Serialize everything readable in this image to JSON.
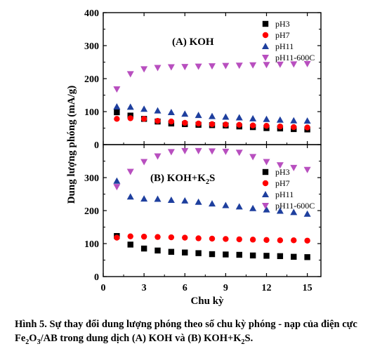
{
  "figure": {
    "x_label": "Chu kỳ",
    "y_label": "Dung lượng phóng (mA/g)",
    "x_ticks": [
      "0",
      "3",
      "6",
      "9",
      "12",
      "15"
    ],
    "caption": {
      "line1": "Hình 5. Sự thay đổi dung lượng phóng theo số chu kỳ phóng - nạp của điện cực",
      "line2_a": "Fe",
      "line2_sub1": "2",
      "line2_b": "O",
      "line2_sub2": "3",
      "line2_c": "/AB trong dung dịch (A) KOH và (B) KOH+K",
      "line2_sub3": "2",
      "line2_d": "S."
    }
  },
  "chart_data": [
    {
      "type": "scatter",
      "title": "(A) KOH",
      "xlim": [
        0,
        16
      ],
      "ylim": [
        0,
        400
      ],
      "y_ticks": [
        "0",
        "100",
        "200",
        "300",
        "400"
      ],
      "legend_placement": "top-right",
      "series": [
        {
          "name": "pH3",
          "marker": "square",
          "color": "#000000",
          "x": [
            1,
            2,
            3,
            4,
            5,
            6,
            7,
            8,
            9,
            10,
            11,
            12,
            13,
            14,
            15
          ],
          "y": [
            98,
            88,
            78,
            70,
            64,
            62,
            60,
            59,
            58,
            55,
            53,
            50,
            49,
            47,
            46
          ]
        },
        {
          "name": "pH7",
          "marker": "circle",
          "color": "#ff0000",
          "x": [
            1,
            2,
            3,
            4,
            5,
            6,
            7,
            8,
            9,
            10,
            11,
            12,
            13,
            14,
            15
          ],
          "y": [
            78,
            80,
            78,
            72,
            70,
            66,
            64,
            62,
            61,
            60,
            58,
            57,
            55,
            53,
            52
          ]
        },
        {
          "name": "pH11",
          "marker": "triangle-up",
          "color": "#1e3f9e",
          "x": [
            1,
            2,
            3,
            4,
            5,
            6,
            7,
            8,
            9,
            10,
            11,
            12,
            13,
            14,
            15
          ],
          "y": [
            115,
            114,
            108,
            103,
            98,
            93,
            89,
            86,
            84,
            82,
            79,
            77,
            75,
            73,
            72
          ]
        },
        {
          "name": "pH11-600C",
          "marker": "triangle-down",
          "color": "#b84fbf",
          "x": [
            1,
            2,
            3,
            4,
            5,
            6,
            7,
            8,
            9,
            10,
            11,
            12,
            13,
            14,
            15
          ],
          "y": [
            168,
            214,
            229,
            233,
            235,
            236,
            237,
            238,
            239,
            240,
            241,
            242,
            243,
            244,
            245
          ]
        }
      ]
    },
    {
      "type": "scatter",
      "title": "(B) KOH+K2S",
      "xlim": [
        0,
        16
      ],
      "ylim": [
        0,
        400
      ],
      "y_ticks": [
        "0",
        "100",
        "200",
        "300"
      ],
      "legend_placement": "middle-right",
      "series": [
        {
          "name": "pH3",
          "marker": "square",
          "color": "#000000",
          "x": [
            1,
            2,
            3,
            4,
            5,
            6,
            7,
            8,
            9,
            10,
            11,
            12,
            13,
            14,
            15
          ],
          "y": [
            123,
            97,
            85,
            79,
            75,
            73,
            71,
            68,
            67,
            66,
            64,
            63,
            62,
            60,
            59
          ]
        },
        {
          "name": "pH7",
          "marker": "circle",
          "color": "#ff0000",
          "x": [
            1,
            2,
            3,
            4,
            5,
            6,
            7,
            8,
            9,
            10,
            11,
            12,
            13,
            14,
            15
          ],
          "y": [
            118,
            122,
            121,
            120,
            119,
            118,
            116,
            115,
            114,
            113,
            112,
            111,
            110,
            110,
            109
          ]
        },
        {
          "name": "pH11",
          "marker": "triangle-up",
          "color": "#1e3f9e",
          "x": [
            1,
            2,
            3,
            4,
            5,
            6,
            7,
            8,
            9,
            10,
            11,
            12,
            13,
            14,
            15
          ],
          "y": [
            290,
            242,
            236,
            235,
            232,
            230,
            226,
            221,
            216,
            212,
            207,
            203,
            199,
            195,
            190
          ]
        },
        {
          "name": "pH11-600C",
          "marker": "triangle-down",
          "color": "#b84fbf",
          "x": [
            1,
            2,
            3,
            4,
            5,
            6,
            7,
            8,
            9,
            10,
            11,
            12,
            13,
            14,
            15
          ],
          "y": [
            272,
            318,
            348,
            365,
            378,
            381,
            381,
            380,
            379,
            376,
            363,
            348,
            338,
            330,
            324
          ]
        }
      ]
    }
  ]
}
